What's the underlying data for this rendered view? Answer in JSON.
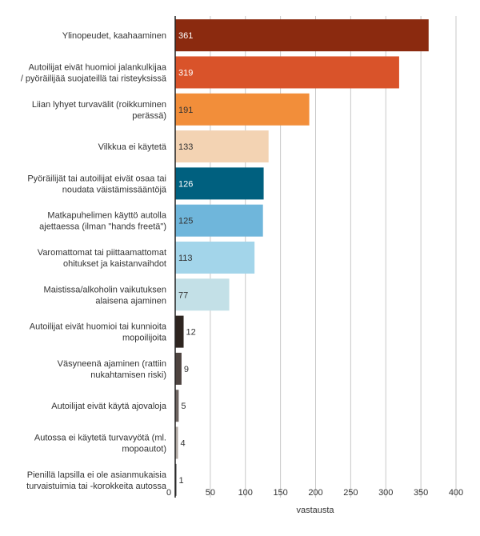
{
  "chart_data": {
    "type": "bar",
    "orientation": "horizontal",
    "xlabel": "vastausta",
    "xlim": [
      0,
      400
    ],
    "xticks": [
      "0",
      "50",
      "100",
      "150",
      "200",
      "250",
      "300",
      "350",
      "400"
    ],
    "grid": true,
    "categories": [
      [
        "Ylinopeudet, kaahaaminen"
      ],
      [
        "Autoilijat eivät huomioi jalankulkijaa",
        "/ pyöräilijää suojateillä tai risteyksissä"
      ],
      [
        "Liian lyhyet turvavälit (roikkuminen",
        "perässä)"
      ],
      [
        "Vilkkua ei käytetä"
      ],
      [
        "Pyöräilijät tai autoilijat eivät osaa tai",
        "noudata väistämissääntöjä"
      ],
      [
        "Matkapuhelimen käyttö autolla",
        "ajettaessa (ilman \"hands freetä\")"
      ],
      [
        "Varomattomat tai piittaamattomat",
        "ohitukset ja kaistanvaihdot"
      ],
      [
        "Maistissa/alkoholin vaikutuksen",
        "alaisena ajaminen"
      ],
      [
        "Autoilijat eivät huomioi tai kunnioita",
        "mopoilijoita"
      ],
      [
        "Väsyneenä ajaminen (rattiin",
        "nukahtamisen riski)"
      ],
      [
        "Autoilijat eivät käytä ajovaloja"
      ],
      [
        "Autossa ei käytetä turvavyötä (ml.",
        "mopoautot)"
      ],
      [
        "Pienillä lapsilla ei ole asianmukaisia",
        "turvaistuimia tai -korokkeita autossa"
      ]
    ],
    "values": [
      361,
      319,
      191,
      133,
      126,
      125,
      113,
      77,
      12,
      9,
      5,
      4,
      1
    ],
    "colors": [
      "#8B2A0F",
      "#D9532A",
      "#F28E3A",
      "#F3D3B3",
      "#00607F",
      "#6FB6DB",
      "#A3D5EA",
      "#C3E0E7",
      "#2E2520",
      "#4E4440",
      "#6E6460",
      "#B0A8A2",
      "#3E3E3E"
    ],
    "label_colors": [
      "#ffffff",
      "#ffffff",
      "#333333",
      "#333333",
      "#ffffff",
      "#333333",
      "#333333",
      "#333333",
      "#333333",
      "#333333",
      "#333333",
      "#333333",
      "#333333"
    ]
  }
}
